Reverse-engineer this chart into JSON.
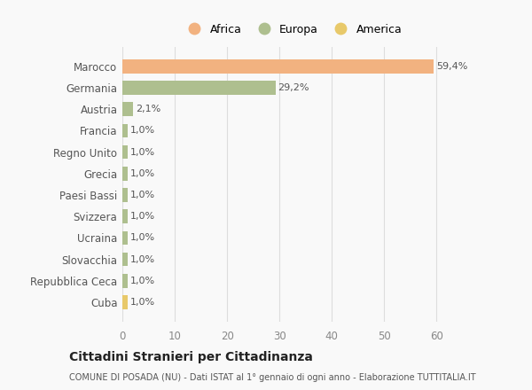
{
  "categories": [
    "Marocco",
    "Germania",
    "Austria",
    "Francia",
    "Regno Unito",
    "Grecia",
    "Paesi Bassi",
    "Svizzera",
    "Ucraina",
    "Slovacchia",
    "Repubblica Ceca",
    "Cuba"
  ],
  "values": [
    59.4,
    29.2,
    2.1,
    1.0,
    1.0,
    1.0,
    1.0,
    1.0,
    1.0,
    1.0,
    1.0,
    1.0
  ],
  "labels": [
    "59,4%",
    "29,2%",
    "2,1%",
    "1,0%",
    "1,0%",
    "1,0%",
    "1,0%",
    "1,0%",
    "1,0%",
    "1,0%",
    "1,0%",
    "1,0%"
  ],
  "colors": [
    "#F2B280",
    "#AEBF8F",
    "#AEBF8F",
    "#AEBF8F",
    "#AEBF8F",
    "#AEBF8F",
    "#AEBF8F",
    "#AEBF8F",
    "#AEBF8F",
    "#AEBF8F",
    "#AEBF8F",
    "#E8C96A"
  ],
  "legend_labels": [
    "Africa",
    "Europa",
    "America"
  ],
  "legend_colors": [
    "#F2B280",
    "#AEBF8F",
    "#E8C96A"
  ],
  "xlim": [
    0,
    65
  ],
  "xticks": [
    0,
    10,
    20,
    30,
    40,
    50,
    60
  ],
  "title": "Cittadini Stranieri per Cittadinanza",
  "subtitle": "COMUNE DI POSADA (NU) - Dati ISTAT al 1° gennaio di ogni anno - Elaborazione TUTTITALIA.IT",
  "background_color": "#f9f9f9",
  "grid_color": "#dddddd"
}
